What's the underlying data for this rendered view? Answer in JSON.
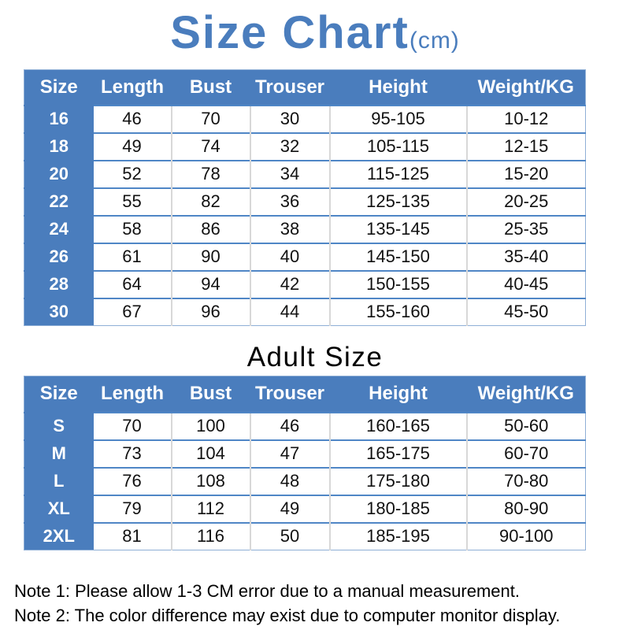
{
  "title": {
    "text": "Size Chart",
    "unit": "(cm)"
  },
  "section_label": "Adult Size",
  "columns": [
    "Size",
    "Length",
    "Bust",
    "Trouser",
    "Height",
    "Weight/KG"
  ],
  "chart_data": [
    {
      "type": "table",
      "title": "Size Chart (cm)",
      "columns": [
        "Size",
        "Length",
        "Bust",
        "Trouser",
        "Height",
        "Weight/KG"
      ],
      "rows": [
        [
          "16",
          "46",
          "70",
          "30",
          "95-105",
          "10-12"
        ],
        [
          "18",
          "49",
          "74",
          "32",
          "105-115",
          "12-15"
        ],
        [
          "20",
          "52",
          "78",
          "34",
          "115-125",
          "15-20"
        ],
        [
          "22",
          "55",
          "82",
          "36",
          "125-135",
          "20-25"
        ],
        [
          "24",
          "58",
          "86",
          "38",
          "135-145",
          "25-35"
        ],
        [
          "26",
          "61",
          "90",
          "40",
          "145-150",
          "35-40"
        ],
        [
          "28",
          "64",
          "94",
          "42",
          "150-155",
          "40-45"
        ],
        [
          "30",
          "67",
          "96",
          "44",
          "155-160",
          "45-50"
        ]
      ]
    },
    {
      "type": "table",
      "title": "Adult Size",
      "columns": [
        "Size",
        "Length",
        "Bust",
        "Trouser",
        "Height",
        "Weight/KG"
      ],
      "rows": [
        [
          "S",
          "70",
          "100",
          "46",
          "160-165",
          "50-60"
        ],
        [
          "M",
          "73",
          "104",
          "47",
          "165-175",
          "60-70"
        ],
        [
          "L",
          "76",
          "108",
          "48",
          "175-180",
          "70-80"
        ],
        [
          "XL",
          "79",
          "112",
          "49",
          "180-185",
          "80-90"
        ],
        [
          "2XL",
          "81",
          "116",
          "50",
          "185-195",
          "90-100"
        ]
      ]
    }
  ],
  "notes": [
    "Note 1: Please allow 1-3 CM error due to a manual measurement.",
    "Note 2: The color difference may exist due to computer monitor display."
  ],
  "colors": {
    "accent": "#4a7dbd",
    "row_line": "#4f86c6",
    "col_line": "#d8d8d8",
    "outer_line": "#8fafd6",
    "header_text": "#ffffff",
    "body_text": "#111111"
  }
}
